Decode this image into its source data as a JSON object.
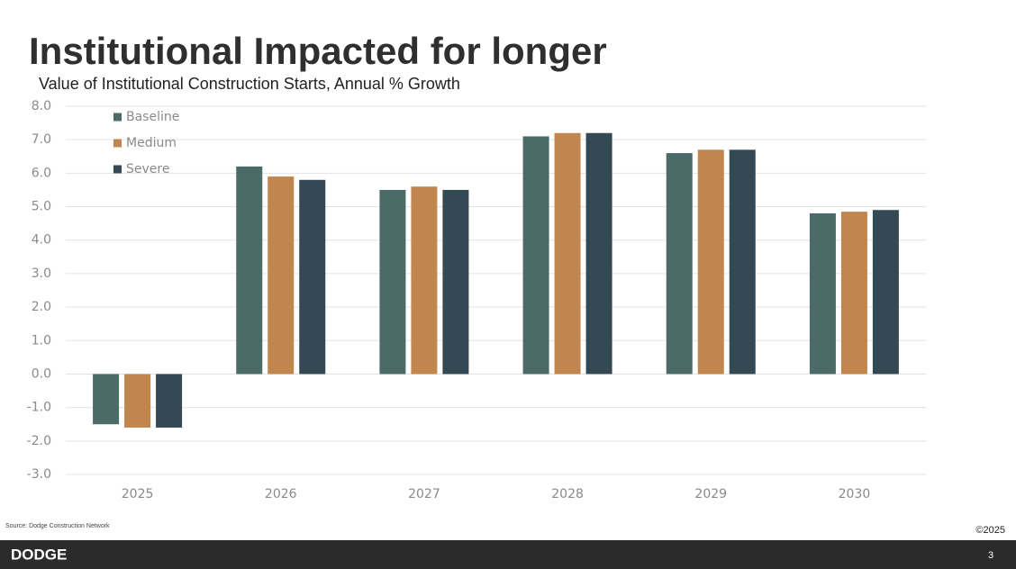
{
  "slide": {
    "title": "Institutional Impacted for longer",
    "source": "Source: Dodge Construction Network",
    "copyright": "©2025",
    "brand": "DODGE",
    "page_number": "3"
  },
  "chart_data": {
    "type": "bar",
    "title": "Value of Institutional Construction Starts, Annual % Growth",
    "categories": [
      "2025",
      "2026",
      "2027",
      "2028",
      "2029",
      "2030"
    ],
    "series": [
      {
        "name": "Baseline",
        "color": "#4a6b68",
        "values": [
          -1.5,
          6.2,
          5.5,
          7.1,
          6.6,
          4.8
        ]
      },
      {
        "name": "Medium",
        "color": "#c0864e",
        "values": [
          -1.6,
          5.9,
          5.6,
          7.2,
          6.7,
          4.85
        ]
      },
      {
        "name": "Severe",
        "color": "#334954",
        "values": [
          -1.6,
          5.8,
          5.5,
          7.2,
          6.7,
          4.9
        ]
      }
    ],
    "ylim": [
      -3,
      8
    ],
    "yticks": [
      {
        "value": 8,
        "label": "8.0"
      },
      {
        "value": 7,
        "label": "7.0"
      },
      {
        "value": 6,
        "label": "6.0"
      },
      {
        "value": 5,
        "label": "5.0"
      },
      {
        "value": 4,
        "label": "4.0"
      },
      {
        "value": 3,
        "label": "3.0"
      },
      {
        "value": 2,
        "label": "2.0"
      },
      {
        "value": 1,
        "label": "1.0"
      },
      {
        "value": 0,
        "label": "0.0"
      },
      {
        "value": -1,
        "label": "-1.0"
      },
      {
        "value": -2,
        "label": "-2.0"
      },
      {
        "value": -3,
        "label": "-3.0"
      }
    ],
    "grid": true,
    "legend": "top-left"
  }
}
